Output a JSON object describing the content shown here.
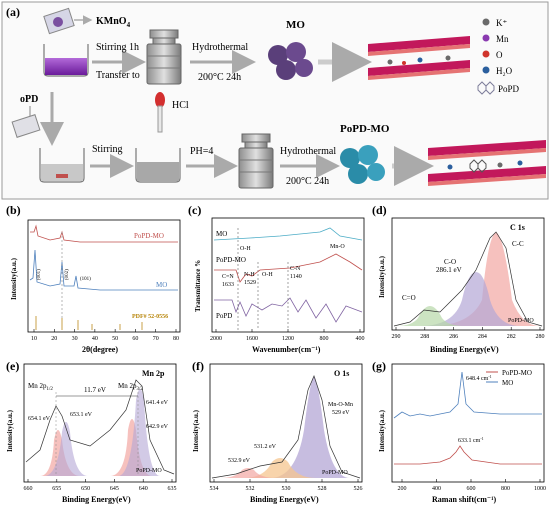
{
  "panel_a": {
    "label": "(a)",
    "kmno4": "KMnO",
    "kmno4_sub": "4",
    "stir1": "Stirring 1h",
    "transfer": "Transfer to",
    "hydro1": "Hydrothermal",
    "temp1": "200°C 24h",
    "mo": "MO",
    "opd": "oPD",
    "stirring": "Stirring",
    "hcl": "HCl",
    "ph": "PH=4",
    "hydro2": "Hydrothermal",
    "temp2": "200°C 24h",
    "popd_mo": "PoPD-MO",
    "legend": [
      {
        "label": "K⁺",
        "color": "#6a6a6a"
      },
      {
        "label": "Mn",
        "color": "#8a3ab0"
      },
      {
        "label": "O",
        "color": "#d0342c"
      },
      {
        "label": "H₂O",
        "color": "#2b5f9e"
      },
      {
        "label": "PoPD",
        "color": "#7d7d9a"
      }
    ]
  },
  "panel_b": {
    "label": "(b)",
    "ylabel": "Intensity(a.u.)",
    "xlabel": "2θ(degree)",
    "series_popd": "PoPD-MO",
    "series_mo": "MO",
    "pdf": "PDF# 52-0556",
    "peaks": [
      "(001)",
      "(002)",
      "(101)"
    ],
    "xticks": [
      "10",
      "20",
      "30",
      "40",
      "50",
      "60",
      "70",
      "80"
    ]
  },
  "panel_c": {
    "label": "(c)",
    "ylabel": "Transmittance %",
    "xlabel": "Wavenumber(cm⁻¹)",
    "series": [
      "MO",
      "PoPD-MO",
      "PoPD"
    ],
    "annotations": [
      "O-H",
      "Mn-O",
      "C=N",
      "1633",
      "N-H",
      "1529",
      "O-H",
      "C-N",
      "1140"
    ],
    "xticks": [
      "2000",
      "1600",
      "1200",
      "800",
      "400"
    ]
  },
  "panel_d": {
    "label": "(d)",
    "title": "C 1s",
    "ylabel": "Intensity(a.u.)",
    "xlabel": "Binding Energy(eV)",
    "peaks": [
      "C=O",
      "C-O",
      "286.1 eV",
      "C-C"
    ],
    "sample": "PoPD-MO",
    "xticks": [
      "290",
      "288",
      "286",
      "284",
      "282",
      "280"
    ]
  },
  "panel_e": {
    "label": "(e)",
    "title": "Mn 2p",
    "ylabel": "Intensity(a.u.)",
    "xlabel": "Binding Energy(eV)",
    "mn_left": "Mn 2p",
    "mn_left_sub": "1/2",
    "mn_right": "Mn 2p",
    "mn_right_sub": "3/2",
    "split": "11.7 eV",
    "peaks": [
      "654.1 eV",
      "653.1 eV",
      "641.4 eV",
      "642.9 eV"
    ],
    "sample": "PoPD-MO",
    "xticks": [
      "660",
      "655",
      "650",
      "645",
      "640",
      "635"
    ]
  },
  "panel_f": {
    "label": "(f)",
    "title": "O 1s",
    "ylabel": "Intensity(a.u.)",
    "xlabel": "Binding Energy(eV)",
    "mn_o_mn": "Mn-O-Mn",
    "mn_o_mn_val": "529 eV",
    "peaks": [
      "531.2 eV",
      "532.9 eV"
    ],
    "sample": "PoPD-MO",
    "xticks": [
      "534",
      "532",
      "530",
      "528",
      "526"
    ]
  },
  "panel_g": {
    "label": "(g)",
    "ylabel": "Intensity(a.u.)",
    "xlabel": "Raman shift(cm⁻¹)",
    "legend": [
      "PoPD-MO",
      "MO"
    ],
    "peak_top": "648.4 cm",
    "peak_top_sup": "-1",
    "peak_bottom": "633.1 cm",
    "peak_bottom_sup": "-1",
    "xticks": [
      "200",
      "400",
      "600",
      "800",
      "1000"
    ]
  },
  "colors": {
    "popd_mo": "#c0504d",
    "mo": "#4f81bd",
    "popd": "#8064a2",
    "mo_ftir": "#4bacc6",
    "peak_red": "#f2a7a3",
    "peak_purple": "#b4a7d6",
    "peak_green": "#b6d7a8",
    "peak_orange": "#f6c58f"
  }
}
